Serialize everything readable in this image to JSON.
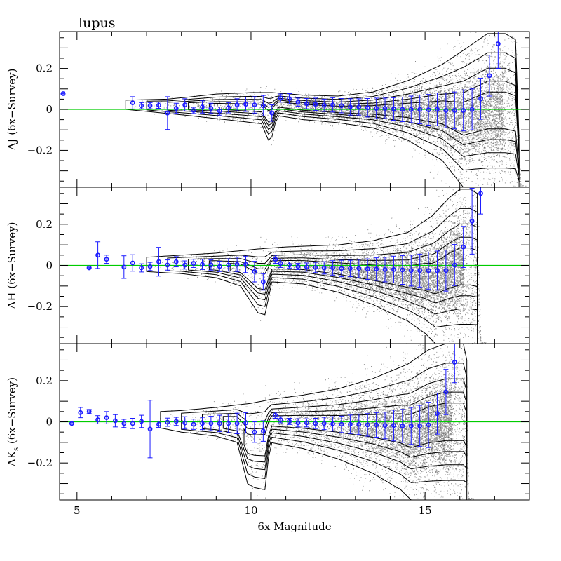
{
  "chart_data": {
    "type": "scatter",
    "title": "lupus",
    "xlabel": "6x Magnitude",
    "xlim": [
      4.5,
      18
    ],
    "xticks": [
      5,
      10,
      15
    ],
    "ylim": [
      -0.38,
      0.38
    ],
    "yticks": [
      -0.2,
      0,
      0.2
    ],
    "reference_line": {
      "y": 0,
      "color": "#00cc00"
    },
    "point_color": "#8a8a8a",
    "binned_color": "#1a1aff",
    "panels": [
      {
        "id": "J",
        "ylabel_main": "ΔJ (6x−Survey)",
        "ylabel_sub": "",
        "xlabel_shown": false,
        "binned": [
          [
            4.6,
            0.077,
            0.002
          ],
          [
            6.6,
            0.032,
            0.03
          ],
          [
            6.85,
            0.018,
            0.015
          ],
          [
            7.1,
            0.018,
            0.015
          ],
          [
            7.35,
            0.02,
            0.015
          ],
          [
            7.6,
            -0.018,
            0.08
          ],
          [
            7.85,
            0.005,
            0.025
          ],
          [
            8.1,
            0.022,
            0.03
          ],
          [
            8.35,
            -0.005,
            0.015
          ],
          [
            8.6,
            0.012,
            0.03
          ],
          [
            8.85,
            0.005,
            0.025
          ],
          [
            9.1,
            -0.008,
            0.02
          ],
          [
            9.35,
            0.008,
            0.025
          ],
          [
            9.6,
            0.022,
            0.03
          ],
          [
            9.85,
            0.025,
            0.035
          ],
          [
            10.1,
            0.022,
            0.04
          ],
          [
            10.35,
            0.018,
            0.05
          ],
          [
            10.6,
            -0.018,
            0.04
          ],
          [
            10.85,
            0.055,
            0.02
          ],
          [
            11.1,
            0.052,
            0.025
          ],
          [
            11.35,
            0.035,
            0.02
          ],
          [
            11.6,
            0.028,
            0.025
          ],
          [
            11.85,
            0.025,
            0.03
          ],
          [
            12.1,
            0.02,
            0.03
          ],
          [
            12.35,
            0.022,
            0.035
          ],
          [
            12.6,
            0.018,
            0.035
          ],
          [
            12.85,
            0.012,
            0.04
          ],
          [
            13.1,
            0.012,
            0.04
          ],
          [
            13.35,
            0.008,
            0.045
          ],
          [
            13.6,
            0.005,
            0.05
          ],
          [
            13.85,
            0.005,
            0.05
          ],
          [
            14.1,
            0.002,
            0.055
          ],
          [
            14.35,
            0.0,
            0.06
          ],
          [
            14.6,
            0.0,
            0.065
          ],
          [
            14.85,
            0.0,
            0.07
          ],
          [
            15.1,
            -0.002,
            0.075
          ],
          [
            15.35,
            0.0,
            0.08
          ],
          [
            15.6,
            -0.005,
            0.085
          ],
          [
            15.85,
            -0.005,
            0.09
          ],
          [
            16.1,
            -0.005,
            0.1
          ],
          [
            16.35,
            0.0,
            0.1
          ],
          [
            16.6,
            0.052,
            0.1
          ],
          [
            16.85,
            0.165,
            0.1
          ],
          [
            17.1,
            0.32,
            0.12
          ]
        ],
        "envelope_upper": [
          [
            6.4,
            0.045
          ],
          [
            7.6,
            0.05
          ],
          [
            8.2,
            0.06
          ],
          [
            9.0,
            0.075
          ],
          [
            10.0,
            0.082
          ],
          [
            10.6,
            0.082
          ],
          [
            11.5,
            0.07
          ],
          [
            12.5,
            0.065
          ],
          [
            13.5,
            0.085
          ],
          [
            14.5,
            0.14
          ],
          [
            15.5,
            0.22
          ],
          [
            16.2,
            0.3
          ],
          [
            16.8,
            0.37
          ],
          [
            17.3,
            0.37
          ],
          [
            17.6,
            0.34
          ],
          [
            17.75,
            -0.38
          ]
        ],
        "envelope_lower": [
          [
            6.4,
            0.0
          ],
          [
            7.6,
            -0.02
          ],
          [
            8.2,
            -0.03
          ],
          [
            9.0,
            -0.045
          ],
          [
            9.8,
            -0.06
          ],
          [
            10.3,
            -0.07
          ],
          [
            10.55,
            -0.17
          ],
          [
            10.75,
            -0.03
          ],
          [
            11.5,
            -0.05
          ],
          [
            12.5,
            -0.065
          ],
          [
            13.5,
            -0.09
          ],
          [
            14.5,
            -0.15
          ],
          [
            15.5,
            -0.25
          ],
          [
            16.1,
            -0.38
          ]
        ]
      },
      {
        "id": "H",
        "ylabel_main": "ΔH (6x−Survey)",
        "ylabel_sub": "",
        "xlabel_shown": false,
        "binned": [
          [
            5.35,
            -0.012,
            0.003
          ],
          [
            5.6,
            0.05,
            0.065
          ],
          [
            5.85,
            0.03,
            0.02
          ],
          [
            6.35,
            -0.008,
            0.055
          ],
          [
            6.6,
            0.012,
            0.04
          ],
          [
            6.85,
            -0.012,
            0.02
          ],
          [
            7.1,
            -0.005,
            0.02
          ],
          [
            7.35,
            0.018,
            0.07
          ],
          [
            7.6,
            0.002,
            0.025
          ],
          [
            7.85,
            0.018,
            0.025
          ],
          [
            8.1,
            0.002,
            0.02
          ],
          [
            8.35,
            0.01,
            0.02
          ],
          [
            8.6,
            0.005,
            0.025
          ],
          [
            8.85,
            0.002,
            0.025
          ],
          [
            9.1,
            -0.005,
            0.025
          ],
          [
            9.35,
            0.002,
            0.03
          ],
          [
            9.6,
            0.005,
            0.035
          ],
          [
            9.85,
            0.005,
            0.04
          ],
          [
            10.1,
            -0.03,
            0.05
          ],
          [
            10.35,
            -0.08,
            0.04
          ],
          [
            10.7,
            0.03,
            0.02
          ],
          [
            10.85,
            0.01,
            0.02
          ],
          [
            11.1,
            0.002,
            0.015
          ],
          [
            11.35,
            -0.005,
            0.015
          ],
          [
            11.6,
            -0.008,
            0.02
          ],
          [
            11.85,
            -0.01,
            0.025
          ],
          [
            12.1,
            -0.012,
            0.03
          ],
          [
            12.35,
            -0.012,
            0.035
          ],
          [
            12.6,
            -0.015,
            0.04
          ],
          [
            12.85,
            -0.015,
            0.04
          ],
          [
            13.1,
            -0.015,
            0.045
          ],
          [
            13.35,
            -0.018,
            0.05
          ],
          [
            13.6,
            -0.018,
            0.055
          ],
          [
            13.85,
            -0.02,
            0.06
          ],
          [
            14.1,
            -0.02,
            0.065
          ],
          [
            14.35,
            -0.022,
            0.07
          ],
          [
            14.6,
            -0.025,
            0.075
          ],
          [
            14.85,
            -0.025,
            0.08
          ],
          [
            15.1,
            -0.025,
            0.09
          ],
          [
            15.35,
            -0.025,
            0.095
          ],
          [
            15.6,
            -0.025,
            0.1
          ],
          [
            15.85,
            0.002,
            0.1
          ],
          [
            16.1,
            0.09,
            0.1
          ],
          [
            16.35,
            0.215,
            0.16
          ],
          [
            16.6,
            0.35,
            0.1
          ]
        ],
        "envelope_upper": [
          [
            7.0,
            0.04
          ],
          [
            8.0,
            0.05
          ],
          [
            9.0,
            0.06
          ],
          [
            10.2,
            0.08
          ],
          [
            11.0,
            0.09
          ],
          [
            12.5,
            0.1
          ],
          [
            13.5,
            0.12
          ],
          [
            14.5,
            0.16
          ],
          [
            15.2,
            0.24
          ],
          [
            15.7,
            0.33
          ],
          [
            16.0,
            0.37
          ],
          [
            16.3,
            0.37
          ],
          [
            16.5,
            0.35
          ],
          [
            16.6,
            -0.38
          ]
        ],
        "envelope_lower": [
          [
            7.0,
            -0.03
          ],
          [
            8.0,
            -0.04
          ],
          [
            9.0,
            -0.06
          ],
          [
            9.7,
            -0.1
          ],
          [
            10.2,
            -0.23
          ],
          [
            10.4,
            -0.24
          ],
          [
            10.6,
            -0.08
          ],
          [
            11.5,
            -0.09
          ],
          [
            12.5,
            -0.13
          ],
          [
            13.5,
            -0.19
          ],
          [
            14.5,
            -0.27
          ],
          [
            15.0,
            -0.33
          ],
          [
            15.3,
            -0.38
          ]
        ]
      },
      {
        "id": "Ks",
        "ylabel_main": "ΔK",
        "ylabel_sub": "s",
        "ylabel_rest": " (6x−Survey)",
        "xlabel_shown": true,
        "binned": [
          [
            4.85,
            -0.008,
            0.003
          ],
          [
            5.1,
            0.045,
            0.025
          ],
          [
            5.35,
            0.05,
            0.01
          ],
          [
            5.6,
            0.01,
            0.02
          ],
          [
            5.85,
            0.02,
            0.03
          ],
          [
            6.1,
            0.005,
            0.03
          ],
          [
            6.35,
            -0.008,
            0.02
          ],
          [
            6.6,
            -0.008,
            0.025
          ],
          [
            6.85,
            0.002,
            0.03
          ],
          [
            7.1,
            -0.035,
            0.14
          ],
          [
            7.35,
            -0.012,
            0.015
          ],
          [
            7.6,
            -0.002,
            0.02
          ],
          [
            7.85,
            0.002,
            0.02
          ],
          [
            8.1,
            -0.005,
            0.03
          ],
          [
            8.35,
            -0.012,
            0.025
          ],
          [
            8.6,
            -0.008,
            0.03
          ],
          [
            8.85,
            -0.008,
            0.035
          ],
          [
            9.1,
            -0.008,
            0.04
          ],
          [
            9.35,
            -0.008,
            0.045
          ],
          [
            9.6,
            -0.008,
            0.05
          ],
          [
            9.85,
            -0.005,
            0.05
          ],
          [
            10.1,
            -0.05,
            0.05
          ],
          [
            10.35,
            -0.045,
            0.05
          ],
          [
            10.7,
            0.032,
            0.015
          ],
          [
            10.85,
            0.01,
            0.015
          ],
          [
            11.1,
            0.002,
            0.015
          ],
          [
            11.35,
            -0.005,
            0.02
          ],
          [
            11.6,
            -0.005,
            0.02
          ],
          [
            11.85,
            -0.008,
            0.025
          ],
          [
            12.1,
            -0.008,
            0.03
          ],
          [
            12.35,
            -0.01,
            0.035
          ],
          [
            12.6,
            -0.012,
            0.04
          ],
          [
            12.85,
            -0.012,
            0.045
          ],
          [
            13.1,
            -0.012,
            0.05
          ],
          [
            13.35,
            -0.015,
            0.055
          ],
          [
            13.6,
            -0.015,
            0.06
          ],
          [
            13.85,
            -0.018,
            0.065
          ],
          [
            14.1,
            -0.018,
            0.075
          ],
          [
            14.35,
            -0.02,
            0.08
          ],
          [
            14.6,
            -0.02,
            0.09
          ],
          [
            14.85,
            -0.02,
            0.1
          ],
          [
            15.1,
            -0.015,
            0.11
          ],
          [
            15.35,
            0.04,
            0.1
          ],
          [
            15.6,
            0.145,
            0.11
          ],
          [
            15.85,
            0.29,
            0.1
          ]
        ],
        "envelope_upper": [
          [
            7.4,
            0.05
          ],
          [
            8.0,
            0.055
          ],
          [
            9.0,
            0.07
          ],
          [
            10.0,
            0.09
          ],
          [
            10.6,
            0.11
          ],
          [
            11.5,
            0.13
          ],
          [
            12.5,
            0.16
          ],
          [
            13.5,
            0.21
          ],
          [
            14.5,
            0.28
          ],
          [
            15.1,
            0.35
          ],
          [
            15.6,
            0.38
          ],
          [
            16.1,
            0.38
          ],
          [
            16.2,
            0.3
          ],
          [
            16.25,
            -0.38
          ]
        ],
        "envelope_lower": [
          [
            7.4,
            -0.03
          ],
          [
            8.0,
            -0.05
          ],
          [
            9.0,
            -0.07
          ],
          [
            9.6,
            -0.1
          ],
          [
            9.9,
            -0.3
          ],
          [
            10.1,
            -0.32
          ],
          [
            10.4,
            -0.33
          ],
          [
            10.55,
            -0.1
          ],
          [
            11.5,
            -0.13
          ],
          [
            12.5,
            -0.18
          ],
          [
            13.5,
            -0.25
          ],
          [
            14.3,
            -0.33
          ],
          [
            14.6,
            -0.38
          ]
        ]
      }
    ]
  }
}
